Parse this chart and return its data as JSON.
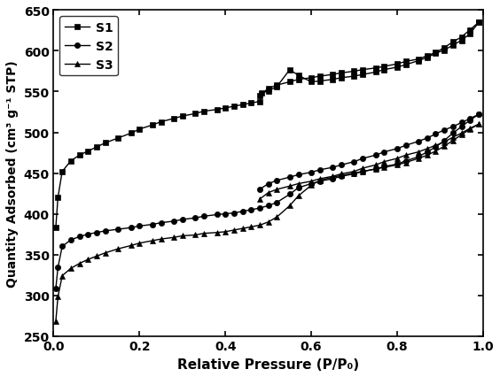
{
  "title": "",
  "xlabel": "Relative Pressure (P/P₀)",
  "ylabel": "Quantity Adsorbed (cm³ g⁻¹ STP)",
  "xlim": [
    0.0,
    1.0
  ],
  "ylim": [
    250,
    650
  ],
  "yticks": [
    250,
    300,
    350,
    400,
    450,
    500,
    550,
    600,
    650
  ],
  "xticks": [
    0.0,
    0.2,
    0.4,
    0.6,
    0.8,
    1.0
  ],
  "S1_ads_x": [
    0.005,
    0.01,
    0.02,
    0.04,
    0.06,
    0.08,
    0.1,
    0.12,
    0.15,
    0.18,
    0.2,
    0.23,
    0.25,
    0.28,
    0.3,
    0.33,
    0.35,
    0.38,
    0.4,
    0.42,
    0.44,
    0.46,
    0.48,
    0.485,
    0.5,
    0.52,
    0.55,
    0.57,
    0.6,
    0.62,
    0.65,
    0.67,
    0.7,
    0.72,
    0.75,
    0.77,
    0.8,
    0.82,
    0.85,
    0.87,
    0.89,
    0.91,
    0.93,
    0.95,
    0.97,
    0.99
  ],
  "S1_ads_y": [
    383,
    420,
    452,
    465,
    472,
    477,
    482,
    487,
    493,
    499,
    504,
    509,
    513,
    517,
    520,
    523,
    526,
    528,
    530,
    532,
    534,
    536,
    538,
    548,
    551,
    556,
    577,
    570,
    562,
    563,
    565,
    567,
    569,
    571,
    574,
    577,
    580,
    583,
    588,
    592,
    597,
    601,
    607,
    613,
    621,
    635
  ],
  "S1_des_x": [
    0.99,
    0.97,
    0.95,
    0.93,
    0.91,
    0.89,
    0.87,
    0.85,
    0.82,
    0.8,
    0.77,
    0.75,
    0.72,
    0.7,
    0.67,
    0.65,
    0.62,
    0.6,
    0.57,
    0.55,
    0.52,
    0.5,
    0.48
  ],
  "S1_des_y": [
    635,
    626,
    617,
    611,
    604,
    598,
    594,
    590,
    587,
    584,
    581,
    579,
    577,
    575,
    573,
    571,
    569,
    567,
    565,
    562,
    558,
    554,
    545
  ],
  "S2_ads_x": [
    0.005,
    0.01,
    0.02,
    0.04,
    0.06,
    0.08,
    0.1,
    0.12,
    0.15,
    0.18,
    0.2,
    0.23,
    0.25,
    0.28,
    0.3,
    0.33,
    0.35,
    0.38,
    0.4,
    0.42,
    0.44,
    0.46,
    0.48,
    0.5,
    0.52,
    0.55,
    0.57,
    0.6,
    0.62,
    0.65,
    0.67,
    0.7,
    0.72,
    0.75,
    0.77,
    0.8,
    0.82,
    0.85,
    0.87,
    0.89,
    0.91,
    0.93,
    0.95,
    0.97,
    0.99
  ],
  "S2_ads_y": [
    308,
    334,
    360,
    368,
    372,
    375,
    377,
    379,
    381,
    383,
    385,
    387,
    389,
    391,
    393,
    395,
    397,
    399,
    400,
    401,
    403,
    405,
    407,
    410,
    414,
    424,
    432,
    437,
    440,
    443,
    446,
    449,
    452,
    455,
    458,
    461,
    465,
    470,
    476,
    482,
    490,
    499,
    507,
    515,
    522
  ],
  "S2_des_x": [
    0.99,
    0.97,
    0.95,
    0.93,
    0.91,
    0.89,
    0.87,
    0.85,
    0.82,
    0.8,
    0.77,
    0.75,
    0.72,
    0.7,
    0.67,
    0.65,
    0.62,
    0.6,
    0.57,
    0.55,
    0.52,
    0.5,
    0.48
  ],
  "S2_des_y": [
    522,
    517,
    512,
    507,
    503,
    498,
    493,
    489,
    484,
    480,
    476,
    472,
    468,
    464,
    460,
    457,
    454,
    451,
    448,
    445,
    441,
    437,
    430
  ],
  "S3_ads_x": [
    0.005,
    0.01,
    0.02,
    0.04,
    0.06,
    0.08,
    0.1,
    0.12,
    0.15,
    0.18,
    0.2,
    0.23,
    0.25,
    0.28,
    0.3,
    0.33,
    0.35,
    0.38,
    0.4,
    0.42,
    0.44,
    0.46,
    0.48,
    0.5,
    0.52,
    0.55,
    0.57,
    0.6,
    0.62,
    0.65,
    0.67,
    0.7,
    0.72,
    0.75,
    0.77,
    0.8,
    0.82,
    0.85,
    0.87,
    0.89,
    0.91,
    0.93,
    0.95,
    0.97,
    0.99
  ],
  "S3_ads_y": [
    268,
    298,
    324,
    333,
    339,
    344,
    348,
    352,
    357,
    361,
    364,
    367,
    369,
    371,
    373,
    374,
    376,
    377,
    378,
    380,
    382,
    384,
    386,
    390,
    396,
    410,
    422,
    435,
    441,
    445,
    447,
    450,
    452,
    455,
    457,
    460,
    463,
    468,
    472,
    477,
    483,
    490,
    497,
    504,
    510
  ],
  "S3_des_x": [
    0.99,
    0.97,
    0.95,
    0.93,
    0.91,
    0.89,
    0.87,
    0.85,
    0.82,
    0.8,
    0.77,
    0.75,
    0.72,
    0.7,
    0.67,
    0.65,
    0.62,
    0.6,
    0.57,
    0.55,
    0.52,
    0.5,
    0.48
  ],
  "S3_des_y": [
    510,
    505,
    499,
    494,
    488,
    484,
    480,
    476,
    472,
    468,
    464,
    460,
    456,
    452,
    449,
    446,
    443,
    440,
    437,
    434,
    430,
    426,
    418
  ],
  "line_color": "#000000",
  "marker_S1": "s",
  "marker_S2": "o",
  "marker_S3": "^",
  "markersize": 4.5,
  "linewidth": 1.0,
  "bg_color": "#ffffff"
}
